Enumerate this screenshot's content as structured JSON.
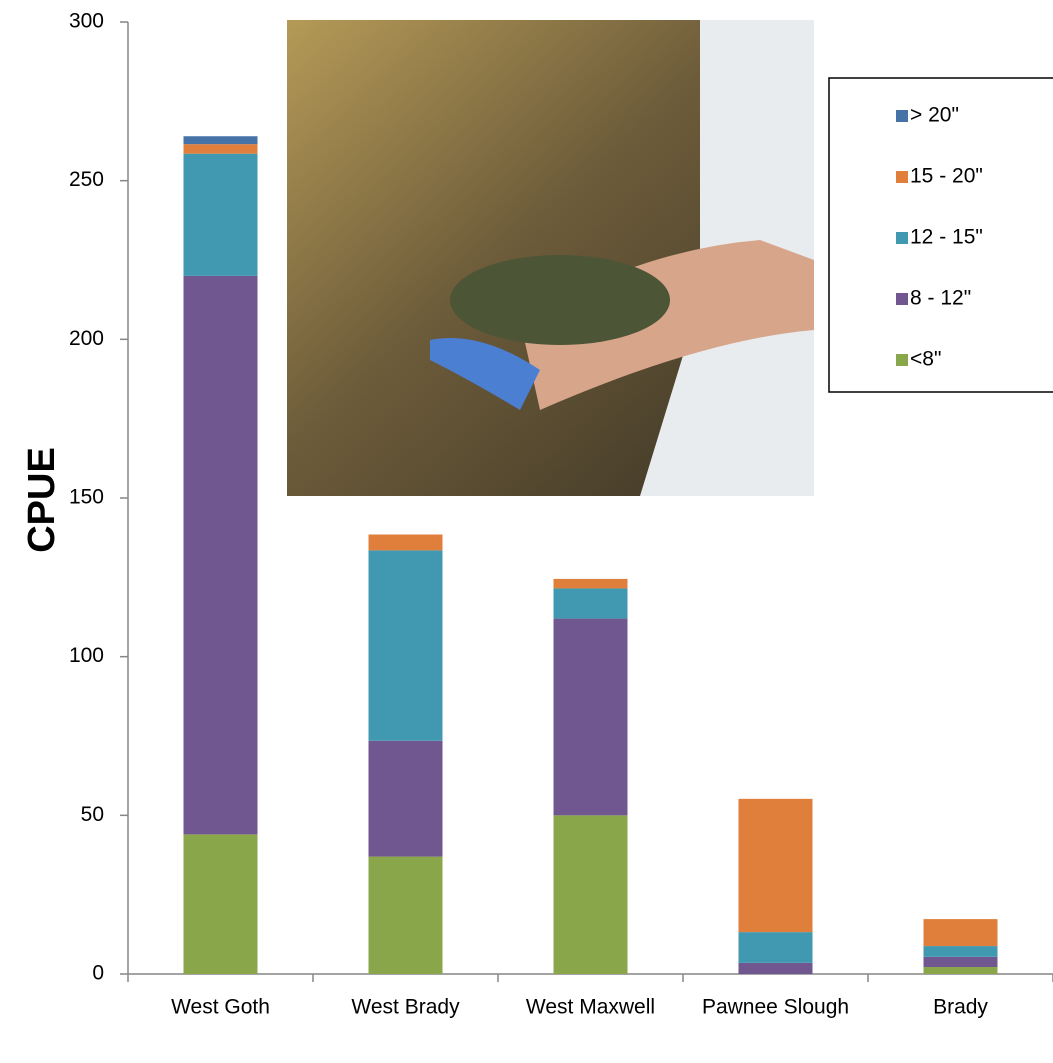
{
  "chart_data": {
    "type": "stacked-bar",
    "y_label": "CPUE",
    "categories": [
      "West Goth",
      "West Brady",
      "West Maxwell",
      "Pawnee Slough",
      "Brady"
    ],
    "series": [
      {
        "name": "<8\"",
        "color": "#8aa64a",
        "values": [
          44,
          37,
          50,
          0,
          2.2
        ]
      },
      {
        "name": "8 - 12\"",
        "color": "#71578f",
        "values": [
          176,
          36.5,
          62,
          3.5,
          3.2
        ]
      },
      {
        "name": "12 - 15\"",
        "color": "#4099b0",
        "values": [
          38.5,
          60,
          9.5,
          9.7,
          3.4
        ]
      },
      {
        "name": "15 - 20\"",
        "color": "#e07f3b",
        "values": [
          3,
          5,
          3,
          42,
          8.5
        ]
      },
      {
        "name": "> 20\"",
        "color": "#4572a7",
        "values": [
          2.5,
          0,
          0,
          0,
          0
        ]
      }
    ],
    "ylim": [
      0,
      300
    ],
    "yticks": [
      0,
      50,
      100,
      150,
      200,
      250,
      300
    ],
    "grid": false,
    "legend": "upper right"
  }
}
